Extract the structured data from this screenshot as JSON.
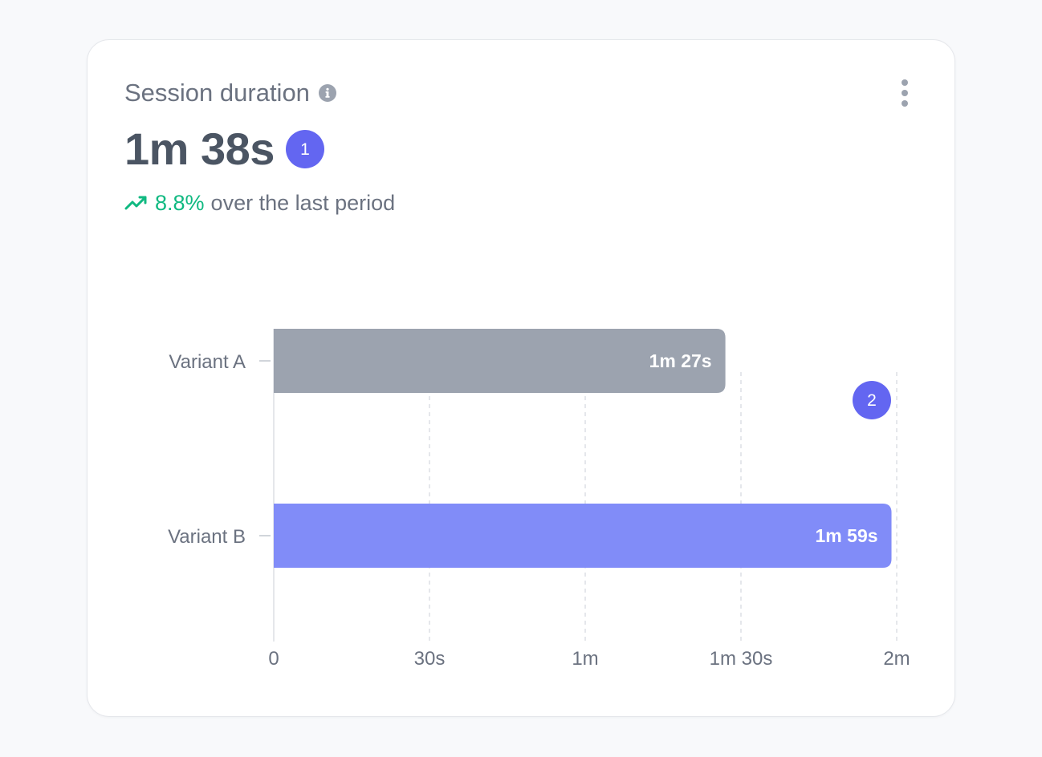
{
  "card": {
    "title": "Session duration",
    "value": "1m 38s",
    "value_marker": "1",
    "chart_marker": "2",
    "trend": {
      "percent": "8.8%",
      "text": "over the last period",
      "direction": "up"
    }
  },
  "colors": {
    "accent": "#6366f1",
    "positive": "#10b981",
    "bar_a": "#9ca3af",
    "bar_b": "#818cf8"
  },
  "icons": {
    "info": "info-icon",
    "more": "kebab-menu-icon",
    "trend": "trend-up-icon"
  },
  "chart_data": {
    "type": "bar",
    "orientation": "horizontal",
    "title": "Session duration",
    "categories": [
      "Variant A",
      "Variant B"
    ],
    "values": [
      87,
      119
    ],
    "value_labels": [
      "1m 27s",
      "1m 59s"
    ],
    "xticks": [
      0,
      30,
      60,
      90,
      120
    ],
    "xtick_labels": [
      "0",
      "30s",
      "1m",
      "1m 30s",
      "2m"
    ],
    "xlim": [
      0,
      120
    ],
    "grid": "vertical-dashed",
    "bar_colors": [
      "#9ca3af",
      "#818cf8"
    ]
  }
}
